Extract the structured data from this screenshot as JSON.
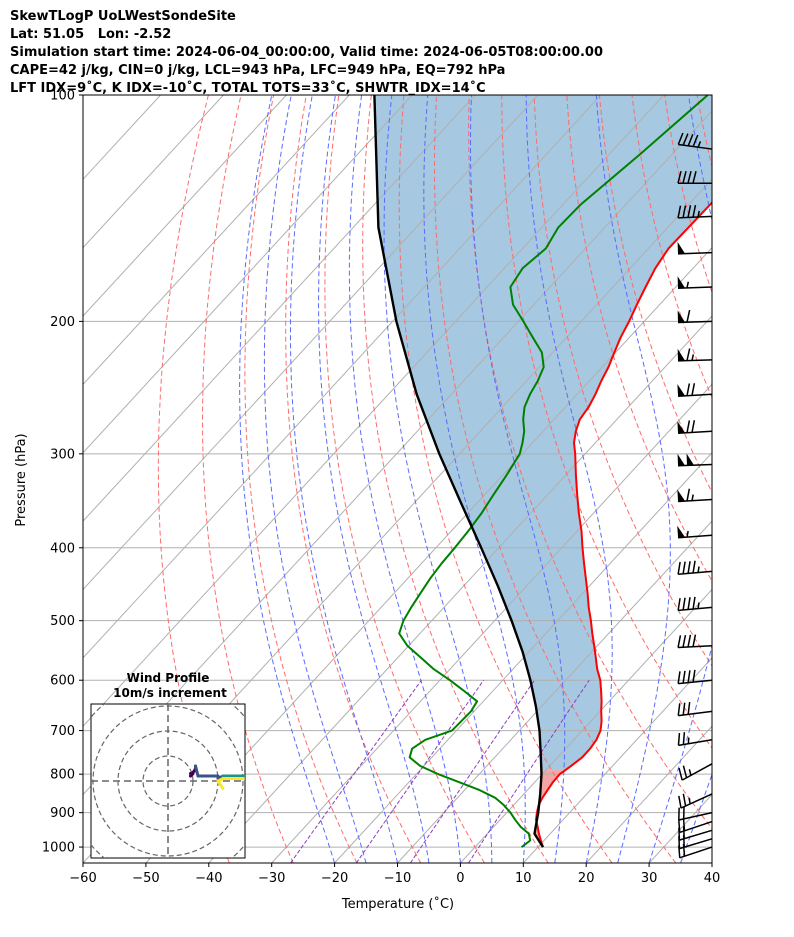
{
  "header": {
    "title": "SkewTLogP UoLWestSondeSite",
    "location": "Lat: 51.05   Lon: -2.52",
    "times": "Simulation start time: 2024-06-04_00:00:00, Valid time: 2024-06-05T08:00:00.00",
    "indices1": "CAPE=42 j/kg, CIN=0 j/kg, LCL=943 hPa, LFC=949 hPa, EQ=792 hPa",
    "indices2": "LFT IDX=9˚C, K IDX=-10˚C, TOTAL TOTS=33˚C, SHWTR_IDX=14˚C"
  },
  "chart_data": {
    "type": "line",
    "xlabel": "Temperature (˚C)",
    "ylabel": "Pressure (hPa)",
    "x_ticks": [
      "−60",
      "−50",
      "−40",
      "−30",
      "−20",
      "−10",
      "0",
      "10",
      "20",
      "30",
      "40"
    ],
    "y_ticks": [
      "100",
      "200",
      "300",
      "400",
      "500",
      "600",
      "700",
      "800",
      "900",
      "1000"
    ],
    "xlim": [
      -60,
      40
    ],
    "ylim": [
      1050,
      100
    ],
    "y_scale": "log",
    "grid": true,
    "series": [
      {
        "name": "temperature",
        "color": "#ff0000",
        "points": [
          [
            1000,
            10.8
          ],
          [
            980,
            9.5
          ],
          [
            960,
            8.2
          ],
          [
            940,
            7.0
          ],
          [
            920,
            5.7
          ],
          [
            900,
            4.8
          ],
          [
            880,
            4.0
          ],
          [
            860,
            3.5
          ],
          [
            840,
            3.2
          ],
          [
            820,
            2.9
          ],
          [
            800,
            2.8
          ],
          [
            780,
            3.4
          ],
          [
            760,
            3.9
          ],
          [
            740,
            3.9
          ],
          [
            720,
            3.6
          ],
          [
            700,
            2.9
          ],
          [
            680,
            1.7
          ],
          [
            660,
            0.2
          ],
          [
            640,
            -1.2
          ],
          [
            620,
            -2.8
          ],
          [
            600,
            -4.5
          ],
          [
            580,
            -6.6
          ],
          [
            560,
            -8.5
          ],
          [
            540,
            -10.5
          ],
          [
            520,
            -12.6
          ],
          [
            500,
            -14.7
          ],
          [
            480,
            -17.0
          ],
          [
            460,
            -19.2
          ],
          [
            440,
            -21.6
          ],
          [
            420,
            -24.1
          ],
          [
            400,
            -26.7
          ],
          [
            380,
            -29.3
          ],
          [
            360,
            -32.3
          ],
          [
            340,
            -35.3
          ],
          [
            320,
            -38.4
          ],
          [
            300,
            -41.6
          ],
          [
            290,
            -43.4
          ],
          [
            280,
            -44.8
          ],
          [
            270,
            -45.9
          ],
          [
            260,
            -46.3
          ],
          [
            250,
            -47.1
          ],
          [
            240,
            -48.1
          ],
          [
            230,
            -49.0
          ],
          [
            220,
            -50.2
          ],
          [
            210,
            -51.4
          ],
          [
            200,
            -52.4
          ],
          [
            190,
            -53.6
          ],
          [
            180,
            -54.8
          ],
          [
            170,
            -56.0
          ],
          [
            160,
            -56.8
          ],
          [
            150,
            -56.7
          ],
          [
            140,
            -56.6
          ],
          [
            130,
            -56.5
          ],
          [
            120,
            -57.0
          ],
          [
            110,
            -57.1
          ],
          [
            100,
            -57.4
          ]
        ]
      },
      {
        "name": "dewpoint",
        "color": "#008000",
        "points": [
          [
            1000,
            7.4
          ],
          [
            980,
            7.8
          ],
          [
            960,
            6.6
          ],
          [
            940,
            4.3
          ],
          [
            920,
            2.4
          ],
          [
            900,
            0.6
          ],
          [
            880,
            -1.5
          ],
          [
            860,
            -4.0
          ],
          [
            840,
            -7.6
          ],
          [
            820,
            -12.0
          ],
          [
            800,
            -16.5
          ],
          [
            780,
            -20.6
          ],
          [
            760,
            -23.5
          ],
          [
            740,
            -24.4
          ],
          [
            720,
            -23.6
          ],
          [
            700,
            -20.7
          ],
          [
            680,
            -20.6
          ],
          [
            660,
            -20.5
          ],
          [
            640,
            -21.0
          ],
          [
            620,
            -24.6
          ],
          [
            600,
            -28.4
          ],
          [
            580,
            -32.6
          ],
          [
            560,
            -36.3
          ],
          [
            540,
            -40.2
          ],
          [
            520,
            -43.3
          ],
          [
            500,
            -44.5
          ],
          [
            480,
            -45.2
          ],
          [
            460,
            -45.8
          ],
          [
            440,
            -46.4
          ],
          [
            420,
            -46.8
          ],
          [
            400,
            -47.0
          ],
          [
            380,
            -47.3
          ],
          [
            360,
            -47.8
          ],
          [
            340,
            -48.6
          ],
          [
            320,
            -49.4
          ],
          [
            300,
            -50.4
          ],
          [
            290,
            -51.6
          ],
          [
            280,
            -53.0
          ],
          [
            270,
            -54.9
          ],
          [
            260,
            -56.5
          ],
          [
            250,
            -57.5
          ],
          [
            240,
            -58.2
          ],
          [
            230,
            -59.3
          ],
          [
            220,
            -61.7
          ],
          [
            210,
            -65.4
          ],
          [
            200,
            -69.2
          ],
          [
            190,
            -73.3
          ],
          [
            180,
            -76.3
          ],
          [
            170,
            -77.1
          ],
          [
            160,
            -76.3
          ],
          [
            150,
            -77.4
          ],
          [
            140,
            -77.2
          ],
          [
            130,
            -76.2
          ],
          [
            120,
            -75.1
          ],
          [
            110,
            -74.1
          ],
          [
            100,
            -73.0
          ]
        ]
      },
      {
        "name": "parcel",
        "color": "#000000",
        "points": [
          [
            1000,
            10.8
          ],
          [
            960,
            7.5
          ],
          [
            943,
            6.8
          ],
          [
            900,
            5.0
          ],
          [
            850,
            2.6
          ],
          [
            800,
            -0.1
          ],
          [
            750,
            -3.3
          ],
          [
            700,
            -6.8
          ],
          [
            650,
            -10.9
          ],
          [
            600,
            -15.6
          ],
          [
            550,
            -21.0
          ],
          [
            500,
            -27.3
          ],
          [
            450,
            -34.5
          ],
          [
            400,
            -42.8
          ],
          [
            350,
            -52.3
          ],
          [
            300,
            -63.2
          ],
          [
            250,
            -75.5
          ],
          [
            200,
            -89.4
          ],
          [
            150,
            -106.0
          ],
          [
            100,
            -126.0
          ]
        ]
      }
    ],
    "wind_barbs": [
      {
        "pressure": 1000,
        "u": 9,
        "v": 3
      },
      {
        "pressure": 975,
        "u": 10,
        "v": 3
      },
      {
        "pressure": 950,
        "u": 10,
        "v": 3
      },
      {
        "pressure": 925,
        "u": 9,
        "v": 3
      },
      {
        "pressure": 900,
        "u": 9,
        "v": 2
      },
      {
        "pressure": 850,
        "u": 11,
        "v": 5
      },
      {
        "pressure": 775,
        "u": 11,
        "v": 6
      },
      {
        "pressure": 720,
        "u": 12,
        "v": 2
      },
      {
        "pressure": 660,
        "u": 16,
        "v": 2
      },
      {
        "pressure": 600,
        "u": 20,
        "v": 2
      },
      {
        "pressure": 540,
        "u": 20,
        "v": 1
      },
      {
        "pressure": 480,
        "u": 22,
        "v": 2
      },
      {
        "pressure": 430,
        "u": 24,
        "v": 2
      },
      {
        "pressure": 385,
        "u": 28,
        "v": 2
      },
      {
        "pressure": 345,
        "u": 34,
        "v": 2
      },
      {
        "pressure": 310,
        "u": 52,
        "v": 2
      },
      {
        "pressure": 280,
        "u": 36,
        "v": 2
      },
      {
        "pressure": 250,
        "u": 36,
        "v": 2
      },
      {
        "pressure": 225,
        "u": 34,
        "v": 1
      },
      {
        "pressure": 200,
        "u": 32,
        "v": 1
      },
      {
        "pressure": 180,
        "u": 28,
        "v": 1
      },
      {
        "pressure": 162,
        "u": 26,
        "v": 1
      },
      {
        "pressure": 145,
        "u": 22,
        "v": 1
      },
      {
        "pressure": 131,
        "u": 20,
        "v": 0
      },
      {
        "pressure": 118,
        "u": 22,
        "v": -3
      }
    ],
    "hodograph": {
      "title": "Wind Profile",
      "subtitle": "10m/s increment",
      "ring_spacing_ms": 10,
      "points": [
        [
          9,
          3
        ],
        [
          9.5,
          3
        ],
        [
          10,
          3
        ],
        [
          9.5,
          2.5
        ],
        [
          9,
          2
        ],
        [
          9.5,
          3
        ],
        [
          10,
          3.5
        ],
        [
          10.5,
          4
        ],
        [
          11,
          5
        ],
        [
          11,
          5.5
        ],
        [
          11,
          6
        ],
        [
          12,
          2
        ],
        [
          14,
          2
        ],
        [
          16,
          2
        ],
        [
          18,
          2
        ],
        [
          20,
          2
        ],
        [
          20,
          1
        ],
        [
          21,
          1.5
        ],
        [
          22,
          2
        ],
        [
          23,
          2
        ],
        [
          24,
          2
        ],
        [
          25,
          2
        ],
        [
          26,
          2
        ],
        [
          28,
          2
        ],
        [
          30,
          2
        ],
        [
          34,
          2
        ],
        [
          40,
          2
        ],
        [
          46,
          2
        ],
        [
          52,
          2
        ],
        [
          44,
          2
        ],
        [
          36,
          2
        ],
        [
          36,
          2
        ],
        [
          35,
          1.5
        ],
        [
          34,
          1
        ],
        [
          33,
          1
        ],
        [
          32,
          1
        ],
        [
          30,
          1
        ],
        [
          28,
          1
        ],
        [
          27,
          1
        ],
        [
          26,
          1
        ],
        [
          24,
          1
        ],
        [
          22,
          1
        ],
        [
          21,
          0.5
        ],
        [
          20,
          0
        ],
        [
          21,
          -1.5
        ],
        [
          22,
          -3
        ]
      ]
    }
  }
}
